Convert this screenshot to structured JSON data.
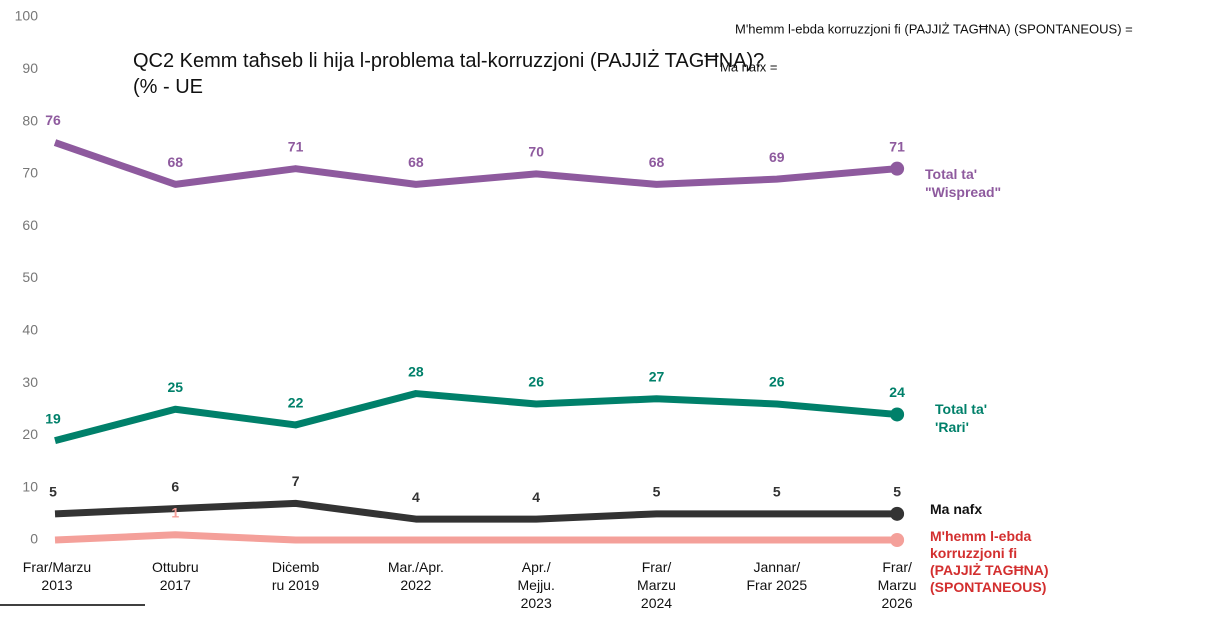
{
  "chart_data": {
    "type": "line",
    "title": "QC2 Kemm taħseb li hija l-problema tal-korruzzjoni (PAJJIŻ TAGĦNA)?\n(% - UE",
    "annotations": [
      "M'hemm l-ebda korruzzjoni fi (PAJJIŻ TAGĦNA) (SPONTANEOUS)  =",
      "Ma nafx ="
    ],
    "categories": [
      "Frar/Marzu\n2013",
      "Ottubru\n2017",
      "Diċemb\nru 2019",
      "Mar./Apr.\n2022",
      "Apr./\nMejju.\n2023",
      "Frar/\nMarzu\n2024",
      "Jannar/\nFrar 2025",
      "Frar/\nMarzu\n2026"
    ],
    "series": [
      {
        "name": "Total ta'\n\"Wispread\"",
        "color": "#8e5a9e",
        "values": [
          76,
          68,
          71,
          68,
          70,
          68,
          69,
          71
        ]
      },
      {
        "name": "Total ta'\n'Rari'",
        "color": "#00806a",
        "values": [
          19,
          25,
          22,
          28,
          26,
          27,
          26,
          24
        ]
      },
      {
        "name": "Ma nafx",
        "color": "#333333",
        "values": [
          5,
          6,
          7,
          4,
          4,
          5,
          5,
          5
        ]
      },
      {
        "name": "M'hemm l-ebda\nkorruzzjoni fi\n(PAJJIŻ TAGĦNA)\n(SPONTANEOUS)",
        "color": "#f4a09a",
        "values": [
          0,
          1,
          0,
          0,
          0,
          0,
          0,
          0
        ],
        "value_labels": [
          null,
          "1",
          null,
          null,
          null,
          null,
          null,
          null
        ]
      }
    ],
    "ylim": [
      0,
      100
    ],
    "yticks": [
      0,
      10,
      20,
      30,
      40,
      50,
      60,
      70,
      80,
      90,
      100
    ],
    "grid": false
  }
}
